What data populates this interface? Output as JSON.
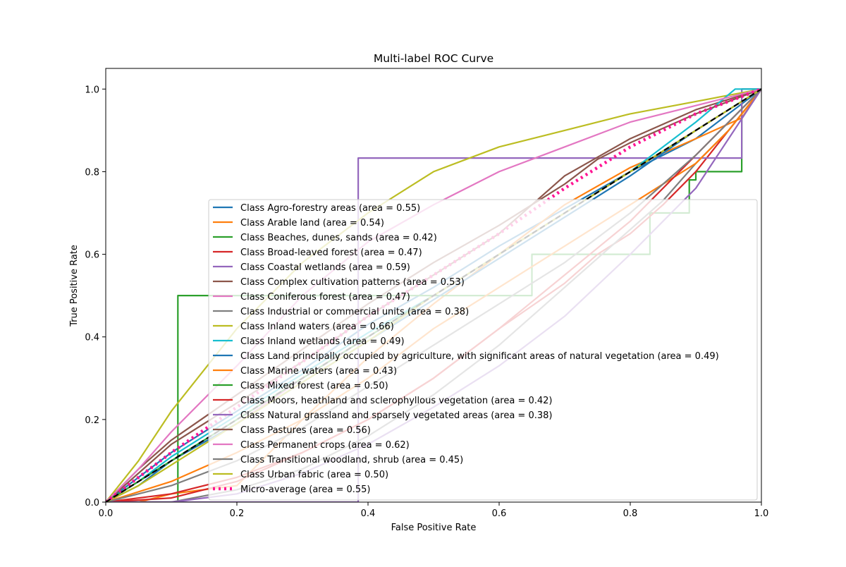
{
  "chart_data": {
    "type": "line",
    "title": "Multi-label ROC Curve",
    "xlabel": "False Positive Rate",
    "ylabel": "True Positive Rate",
    "xlim": [
      0.0,
      1.0
    ],
    "ylim": [
      0.0,
      1.05
    ],
    "xticks": [
      "0.0",
      "0.2",
      "0.4",
      "0.6",
      "0.8",
      "1.0"
    ],
    "yticks": [
      "0.0",
      "0.2",
      "0.4",
      "0.6",
      "0.8",
      "1.0"
    ],
    "legend_position": "lower-right",
    "grid": false,
    "series": [
      {
        "name": "Class Agro-forestry areas (area = 0.55)",
        "color": "#1f77b4",
        "auc": 0.55,
        "x": [
          0,
          0.05,
          0.1,
          0.2,
          0.3,
          0.4,
          0.5,
          0.6,
          0.7,
          0.8,
          0.9,
          0.95,
          1.0
        ],
        "y": [
          0,
          0.06,
          0.12,
          0.22,
          0.32,
          0.43,
          0.52,
          0.62,
          0.71,
          0.8,
          0.88,
          0.94,
          1.0
        ]
      },
      {
        "name": "Class Arable land (area = 0.54)",
        "color": "#ff7f0e",
        "auc": 0.54,
        "x": [
          0,
          0.05,
          0.1,
          0.15,
          0.2,
          0.3,
          0.4,
          0.5,
          0.6,
          0.7,
          0.8,
          0.9,
          0.97,
          1.0
        ],
        "y": [
          0,
          0.0,
          0.02,
          0.03,
          0.04,
          0.2,
          0.35,
          0.48,
          0.6,
          0.72,
          0.81,
          0.88,
          0.93,
          1.0
        ]
      },
      {
        "name": "Class Beaches, dunes, sands (area = 0.42)",
        "color": "#2ca02c",
        "auc": 0.42,
        "x": [
          0,
          0.11,
          0.11,
          0.5,
          0.5,
          0.65,
          0.65,
          0.83,
          0.83,
          0.89,
          0.89,
          0.9,
          0.9,
          0.97,
          0.97,
          1.0
        ],
        "y": [
          0,
          0,
          0.5,
          0.5,
          0.5,
          0.5,
          0.6,
          0.6,
          0.7,
          0.7,
          0.78,
          0.78,
          0.8,
          0.8,
          1.0,
          1.0
        ]
      },
      {
        "name": "Class Broad-leaved forest (area = 0.47)",
        "color": "#d62728",
        "auc": 0.47,
        "x": [
          0,
          0.1,
          0.2,
          0.3,
          0.4,
          0.5,
          0.6,
          0.7,
          0.75,
          0.8,
          0.85,
          0.9,
          0.95,
          1.0
        ],
        "y": [
          0,
          0.02,
          0.06,
          0.12,
          0.2,
          0.3,
          0.42,
          0.53,
          0.6,
          0.65,
          0.72,
          0.8,
          0.9,
          1.0
        ]
      },
      {
        "name": "Class Coastal wetlands (area = 0.59)",
        "color": "#9467bd",
        "auc": 0.59,
        "x": [
          0,
          0.24,
          0.24,
          0.385,
          0.385,
          0.97,
          0.97,
          1.0
        ],
        "y": [
          0,
          0,
          0.0,
          0.0,
          0.833,
          0.833,
          1.0,
          1.0
        ]
      },
      {
        "name": "Class Complex cultivation patterns (area = 0.53)",
        "color": "#8c564b",
        "auc": 0.53,
        "x": [
          0,
          0.05,
          0.1,
          0.2,
          0.3,
          0.4,
          0.5,
          0.6,
          0.7,
          0.8,
          0.9,
          1.0
        ],
        "y": [
          0,
          0.07,
          0.14,
          0.24,
          0.34,
          0.45,
          0.55,
          0.65,
          0.79,
          0.88,
          0.95,
          1.0
        ]
      },
      {
        "name": "Class Coniferous forest (area = 0.47)",
        "color": "#e377c2",
        "auc": 0.47,
        "x": [
          0,
          0.05,
          0.1,
          0.2,
          0.3,
          0.4,
          0.5,
          0.6,
          0.7,
          0.8,
          0.9,
          1.0
        ],
        "y": [
          0,
          0.05,
          0.1,
          0.19,
          0.3,
          0.4,
          0.5,
          0.6,
          0.7,
          0.8,
          0.9,
          1.0
        ]
      },
      {
        "name": "Class Industrial or commercial units (area = 0.38)",
        "color": "#7f7f7f",
        "auc": 0.38,
        "x": [
          0,
          0.1,
          0.2,
          0.3,
          0.4,
          0.5,
          0.6,
          0.7,
          0.8,
          0.85,
          0.9,
          0.95,
          1.0
        ],
        "y": [
          0,
          0.0,
          0.03,
          0.08,
          0.16,
          0.26,
          0.38,
          0.52,
          0.66,
          0.73,
          0.82,
          0.9,
          1.0
        ]
      },
      {
        "name": "Class Inland waters (area = 0.66)",
        "color": "#bcbd22",
        "auc": 0.66,
        "x": [
          0,
          0.05,
          0.1,
          0.15,
          0.2,
          0.3,
          0.4,
          0.5,
          0.6,
          0.7,
          0.8,
          0.9,
          1.0
        ],
        "y": [
          0,
          0.1,
          0.22,
          0.32,
          0.42,
          0.58,
          0.7,
          0.8,
          0.86,
          0.9,
          0.94,
          0.97,
          1.0
        ]
      },
      {
        "name": "Class Inland wetlands (area = 0.49)",
        "color": "#17becf",
        "auc": 0.49,
        "x": [
          0,
          0.05,
          0.1,
          0.2,
          0.3,
          0.4,
          0.5,
          0.6,
          0.7,
          0.8,
          0.9,
          0.96,
          1.0
        ],
        "y": [
          0,
          0.05,
          0.11,
          0.21,
          0.31,
          0.41,
          0.5,
          0.6,
          0.7,
          0.8,
          0.92,
          1.0,
          1.0
        ]
      },
      {
        "name": "Class Land principally occupied by agriculture, with significant areas of natural vegetation (area = 0.49)",
        "color": "#1f77b4",
        "auc": 0.49,
        "x": [
          0,
          0.05,
          0.1,
          0.2,
          0.3,
          0.4,
          0.5,
          0.6,
          0.7,
          0.8,
          0.9,
          1.0
        ],
        "y": [
          0,
          0.04,
          0.1,
          0.19,
          0.29,
          0.39,
          0.49,
          0.59,
          0.69,
          0.79,
          0.9,
          1.0
        ]
      },
      {
        "name": "Class Marine waters (area = 0.43)",
        "color": "#ff7f0e",
        "auc": 0.43,
        "x": [
          0,
          0.1,
          0.2,
          0.3,
          0.4,
          0.5,
          0.6,
          0.7,
          0.8,
          0.9,
          0.95,
          1.0
        ],
        "y": [
          0,
          0.05,
          0.12,
          0.2,
          0.3,
          0.42,
          0.52,
          0.62,
          0.72,
          0.82,
          0.9,
          1.0
        ]
      },
      {
        "name": "Class Mixed forest (area = 0.50)",
        "color": "#2ca02c",
        "auc": 0.5,
        "x": [
          0,
          0.05,
          0.1,
          0.2,
          0.3,
          0.4,
          0.5,
          0.6,
          0.7,
          0.8,
          0.9,
          1.0
        ],
        "y": [
          0,
          0.05,
          0.1,
          0.2,
          0.3,
          0.4,
          0.5,
          0.6,
          0.7,
          0.8,
          0.9,
          1.0
        ]
      },
      {
        "name": "Class Moors, heathland and sclerophyllous vegetation (area = 0.42)",
        "color": "#d62728",
        "auc": 0.42,
        "x": [
          0,
          0.1,
          0.2,
          0.3,
          0.4,
          0.5,
          0.6,
          0.7,
          0.8,
          0.85,
          0.9,
          1.0
        ],
        "y": [
          0,
          0.01,
          0.05,
          0.12,
          0.2,
          0.3,
          0.42,
          0.55,
          0.68,
          0.76,
          0.84,
          1.0
        ]
      },
      {
        "name": "Class Natural grassland and sparsely vegetated areas (area = 0.38)",
        "color": "#9467bd",
        "auc": 0.38,
        "x": [
          0,
          0.1,
          0.2,
          0.3,
          0.4,
          0.5,
          0.6,
          0.7,
          0.8,
          0.85,
          0.9,
          0.95,
          1.0
        ],
        "y": [
          0,
          0.0,
          0.02,
          0.07,
          0.14,
          0.23,
          0.33,
          0.45,
          0.6,
          0.68,
          0.76,
          0.88,
          1.0
        ]
      },
      {
        "name": "Class Pastures (area = 0.56)",
        "color": "#8c564b",
        "auc": 0.56,
        "x": [
          0,
          0.05,
          0.1,
          0.2,
          0.3,
          0.4,
          0.5,
          0.6,
          0.7,
          0.75,
          0.8,
          0.9,
          1.0
        ],
        "y": [
          0,
          0.08,
          0.15,
          0.26,
          0.37,
          0.48,
          0.58,
          0.67,
          0.77,
          0.83,
          0.87,
          0.94,
          1.0
        ]
      },
      {
        "name": "Class Permanent crops (area = 0.62)",
        "color": "#e377c2",
        "auc": 0.62,
        "x": [
          0,
          0.05,
          0.1,
          0.2,
          0.3,
          0.4,
          0.5,
          0.6,
          0.7,
          0.8,
          0.9,
          1.0
        ],
        "y": [
          0,
          0.08,
          0.17,
          0.33,
          0.5,
          0.63,
          0.72,
          0.8,
          0.86,
          0.92,
          0.96,
          1.0
        ]
      },
      {
        "name": "Class Transitional woodland, shrub (area = 0.45)",
        "color": "#7f7f7f",
        "auc": 0.45,
        "x": [
          0,
          0.1,
          0.2,
          0.3,
          0.4,
          0.5,
          0.6,
          0.7,
          0.8,
          0.9,
          1.0
        ],
        "y": [
          0,
          0.04,
          0.1,
          0.18,
          0.28,
          0.38,
          0.48,
          0.58,
          0.7,
          0.84,
          1.0
        ]
      },
      {
        "name": "Class Urban fabric (area = 0.50)",
        "color": "#bcbd22",
        "auc": 0.5,
        "x": [
          0,
          0.05,
          0.1,
          0.2,
          0.3,
          0.4,
          0.5,
          0.6,
          0.7,
          0.8,
          0.9,
          1.0
        ],
        "y": [
          0,
          0.04,
          0.09,
          0.19,
          0.29,
          0.39,
          0.5,
          0.6,
          0.7,
          0.8,
          0.9,
          1.0
        ]
      },
      {
        "name": "Micro-average (area = 0.55)",
        "color": "#ff1493",
        "auc": 0.55,
        "style": "dotted",
        "x": [
          0,
          0.05,
          0.1,
          0.2,
          0.3,
          0.4,
          0.5,
          0.6,
          0.7,
          0.8,
          0.9,
          1.0
        ],
        "y": [
          0,
          0.06,
          0.12,
          0.23,
          0.34,
          0.45,
          0.55,
          0.65,
          0.76,
          0.86,
          0.94,
          1.0
        ]
      }
    ],
    "diagonal": {
      "x": [
        0,
        1
      ],
      "y": [
        0,
        1
      ],
      "color": "#000000",
      "style": "dashed"
    }
  }
}
